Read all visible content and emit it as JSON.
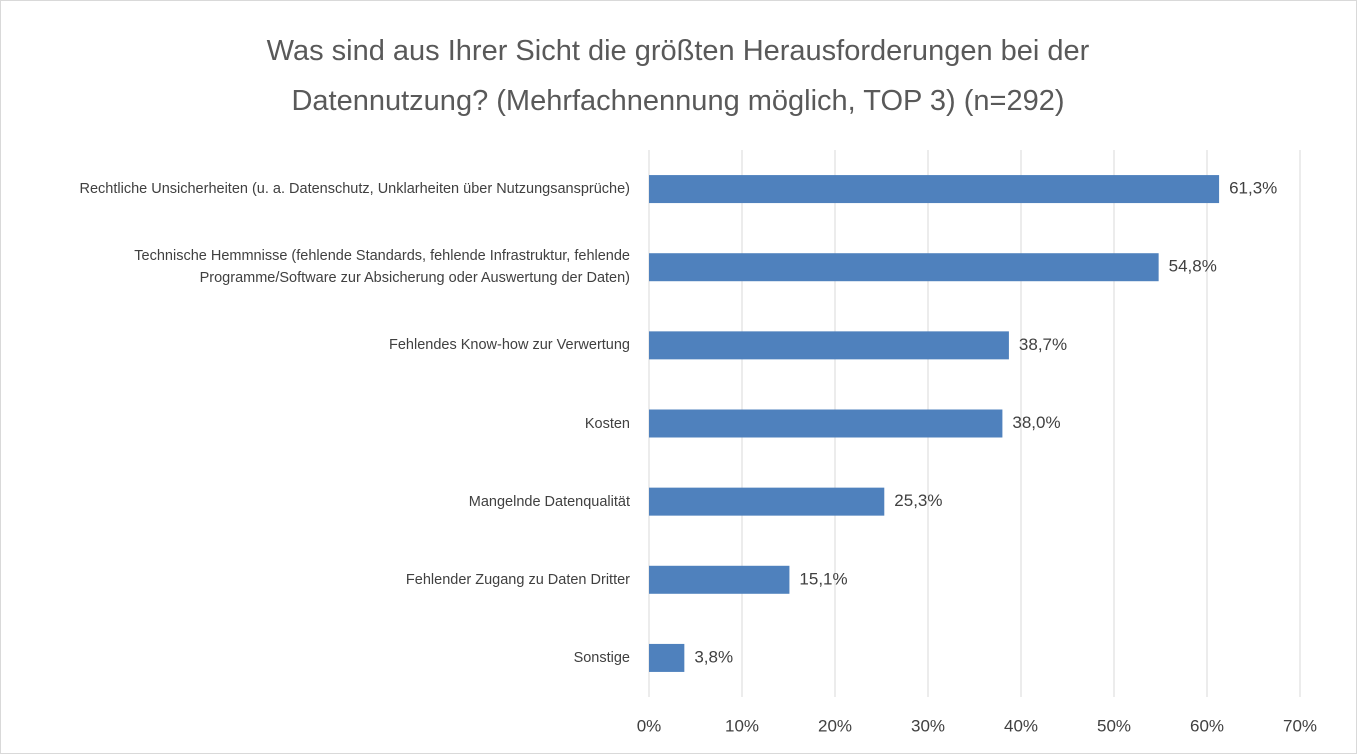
{
  "chart_data": {
    "type": "hbar",
    "title": "Was sind aus Ihrer Sicht die größten Herausforderungen bei der Datennutzung? (Mehrfachnennung möglich, TOP 3) (n=292)",
    "categories": [
      "Rechtliche Unsicherheiten (u. a. Datenschutz, Unklarheiten über Nutzungsansprüche)",
      "Technische Hemmnisse (fehlende Standards, fehlende Infrastruktur, fehlende Programme/Software zur Absicherung oder Auswertung der Daten)",
      "Fehlendes Know-how zur Verwertung",
      "Kosten",
      "Mangelnde Datenqualität",
      "Fehlender Zugang zu Daten Dritter",
      "Sonstige"
    ],
    "values": [
      61.3,
      54.8,
      38.7,
      38.0,
      25.3,
      15.1,
      3.8
    ],
    "value_labels": [
      "61,3%",
      "54,8%",
      "38,7%",
      "38,0%",
      "25,3%",
      "15,1%",
      "3,8%"
    ],
    "color": "#4f81bd",
    "xlim": [
      0,
      70
    ],
    "xticks": [
      {
        "value": 0,
        "label": "0%"
      },
      {
        "value": 10,
        "label": "10%"
      },
      {
        "value": 20,
        "label": "20%"
      },
      {
        "value": 30,
        "label": "30%"
      },
      {
        "value": 40,
        "label": "40%"
      },
      {
        "value": 50,
        "label": "50%"
      },
      {
        "value": 60,
        "label": "60%"
      },
      {
        "value": 70,
        "label": "70%"
      }
    ],
    "grid": true
  }
}
